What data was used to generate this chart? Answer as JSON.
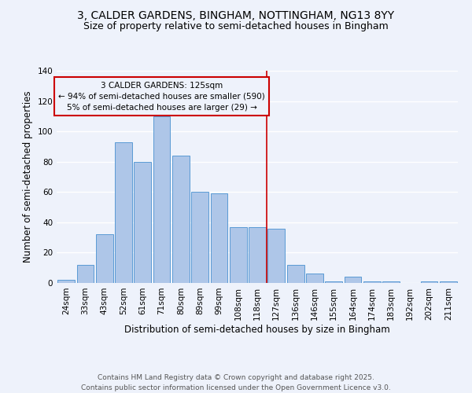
{
  "title": "3, CALDER GARDENS, BINGHAM, NOTTINGHAM, NG13 8YY",
  "subtitle": "Size of property relative to semi-detached houses in Bingham",
  "xlabel": "Distribution of semi-detached houses by size in Bingham",
  "ylabel": "Number of semi-detached properties",
  "categories": [
    "24sqm",
    "33sqm",
    "43sqm",
    "52sqm",
    "61sqm",
    "71sqm",
    "80sqm",
    "89sqm",
    "99sqm",
    "108sqm",
    "118sqm",
    "127sqm",
    "136sqm",
    "146sqm",
    "155sqm",
    "164sqm",
    "174sqm",
    "183sqm",
    "192sqm",
    "202sqm",
    "211sqm"
  ],
  "values": [
    2,
    12,
    32,
    93,
    80,
    110,
    84,
    60,
    59,
    37,
    37,
    36,
    12,
    6,
    1,
    4,
    1,
    1,
    0,
    1,
    1
  ],
  "bar_color": "#aec6e8",
  "bar_edge_color": "#5a9bd5",
  "vline_color": "#cc0000",
  "annotation_title": "3 CALDER GARDENS: 125sqm",
  "annotation_line1": "← 94% of semi-detached houses are smaller (590)",
  "annotation_line2": "5% of semi-detached houses are larger (29) →",
  "annotation_box_color": "#cc0000",
  "ylim": [
    0,
    140
  ],
  "yticks": [
    0,
    20,
    40,
    60,
    80,
    100,
    120,
    140
  ],
  "footer1": "Contains HM Land Registry data © Crown copyright and database right 2025.",
  "footer2": "Contains public sector information licensed under the Open Government Licence v3.0.",
  "bg_color": "#eef2fb",
  "grid_color": "#ffffff",
  "title_fontsize": 10,
  "subtitle_fontsize": 9,
  "axis_label_fontsize": 8.5,
  "tick_fontsize": 7.5,
  "annotation_fontsize": 7.5,
  "footer_fontsize": 6.5
}
